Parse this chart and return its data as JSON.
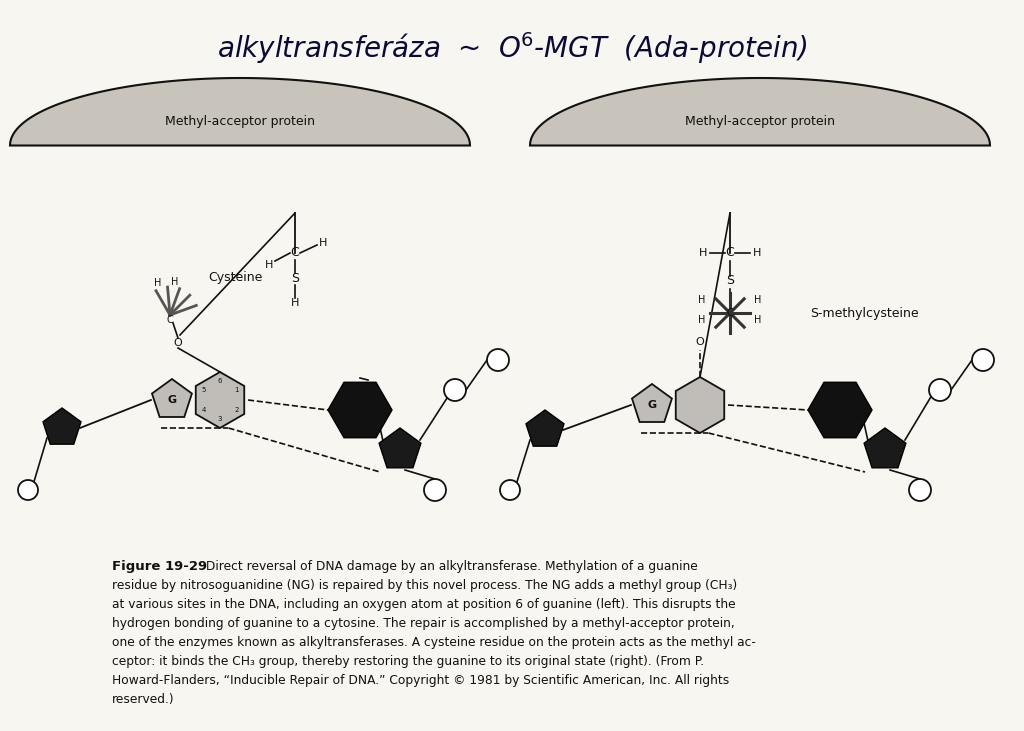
{
  "bg_color": "#f0ede6",
  "paper_color": "#f8f6f0",
  "dark": "#111111",
  "gray_dome": "#c8c4bc",
  "gray_guanine": "#c0bdb8",
  "caption_bold": "Figure 19-29",
  "caption_body": " Direct reversal of DNA damage by an alkyltransferase. Methylation of a guanine\nresidue by nitrosoguanidine (NG) is repaired by this novel process. The NG adds a methyl group (CH₃)\nat various sites in the DNA, including an oxygen atom at position 6 of guanine (left). This disrupts the\nhydrogen bonding of guanine to a cytosine. The repair is accomplished by a methyl-acceptor protein,\none of the enzymes known as alkyltransferases. A cysteine residue on the protein acts as the methyl ac-\nceptor: it binds the CH₃ group, thereby restoring the guanine to its original state (right). (From P.\nHoward-Flanders, “Inducible Repair of DNA.” Copyright © 1981 by Scientific American, Inc. All rights\nreserved.)",
  "left_label": "Methyl-acceptor protein",
  "right_label": "Methyl-acceptor protein",
  "cys_label": "Cysteine",
  "scys_label": "S-methylcysteine"
}
